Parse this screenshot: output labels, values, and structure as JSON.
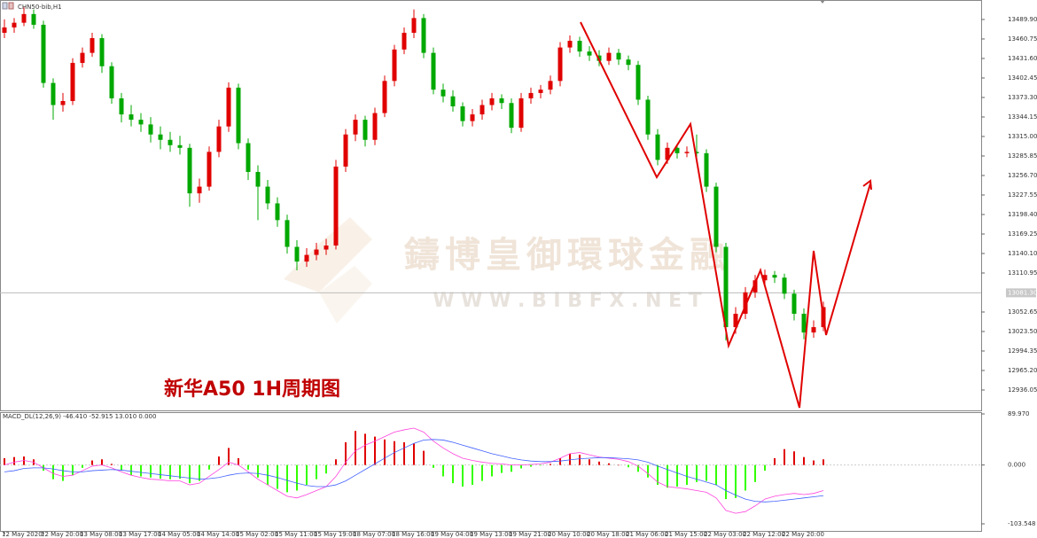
{
  "chart_data": {
    "type": "candlestick",
    "title": "CHN50-bib,H1",
    "annotation": "新华A50 1H周期图",
    "watermark": [
      "鑄博皇御環球金融",
      "W W W . B I B F X . N E T"
    ],
    "up_color": "#e00000",
    "down_color": "#00a800",
    "categories": [
      "12 May 2020",
      null,
      null,
      null,
      "12 May 20:00",
      null,
      null,
      null,
      "13 May 08:00",
      null,
      null,
      null,
      "13 May 17:00",
      null,
      null,
      null,
      "14 May 05:00",
      null,
      null,
      null,
      "14 May 14:00",
      null,
      null,
      null,
      "15 May 02:00",
      null,
      null,
      null,
      "15 May 11:00",
      null,
      null,
      null,
      "15 May 19:00",
      null,
      null,
      null,
      "18 May 07:00",
      null,
      null,
      null,
      "18 May 16:00",
      null,
      null,
      null,
      "19 May 04:00",
      null,
      null,
      null,
      "19 May 13:00",
      null,
      null,
      null,
      "19 May 21:00",
      null,
      null,
      null,
      "20 May 10:00",
      null,
      null,
      null,
      "20 May 18:00",
      null,
      null,
      null,
      "21 May 06:00",
      null,
      null,
      null,
      "21 May 15:00",
      null,
      null,
      null,
      "22 May 03:00",
      null,
      null,
      null,
      "22 May 12:00",
      null,
      null,
      null,
      "22 May 20:00",
      null,
      null,
      null,
      null
    ],
    "open": [
      13470,
      13478,
      13485,
      13498,
      13482,
      13395,
      13362,
      13368,
      13425,
      13440,
      13462,
      13420,
      13372,
      13348,
      13340,
      13333,
      13318,
      13310,
      13302,
      13298,
      13230,
      13240,
      13292,
      13330,
      13388,
      13305,
      13262,
      13240,
      13215,
      13190,
      13150,
      13128,
      13138,
      13146,
      13152,
      13270,
      13318,
      13340,
      13310,
      13350,
      13398,
      13445,
      13470,
      13492,
      13440,
      13385,
      13375,
      13360,
      13338,
      13348,
      13362,
      13372,
      13365,
      13328,
      13372,
      13380,
      13385,
      13398,
      13448,
      13458,
      13442,
      13436,
      13428,
      13440,
      13430,
      13422,
      13370,
      13318,
      13280,
      13298,
      13290,
      13292,
      13290,
      13240,
      13150,
      13030,
      13050,
      13082,
      13100,
      13108,
      13104,
      13080,
      13050,
      13022,
      13030
    ],
    "high": [
      13490,
      13492,
      13508,
      13505,
      13488,
      13402,
      13380,
      13432,
      13448,
      13470,
      13468,
      13426,
      13380,
      13362,
      13350,
      13344,
      13330,
      13322,
      13316,
      13304,
      13252,
      13300,
      13340,
      13396,
      13394,
      13312,
      13272,
      13250,
      13224,
      13198,
      13160,
      13148,
      13156,
      13162,
      13280,
      13326,
      13348,
      13346,
      13358,
      13406,
      13452,
      13478,
      13505,
      13498,
      13448,
      13394,
      13384,
      13366,
      13356,
      13370,
      13380,
      13378,
      13372,
      13380,
      13388,
      13392,
      13406,
      13456,
      13466,
      13464,
      13450,
      13444,
      13448,
      13446,
      13436,
      13428,
      13376,
      13326,
      13306,
      13304,
      13300,
      13318,
      13296,
      13246,
      13156,
      13060,
      13090,
      13108,
      13116,
      13114,
      13110,
      13086,
      13058,
      13040,
      13068
    ],
    "low": [
      13462,
      13470,
      13480,
      13476,
      13388,
      13340,
      13352,
      13362,
      13418,
      13434,
      13410,
      13364,
      13336,
      13330,
      13322,
      13306,
      13296,
      13292,
      13288,
      13210,
      13216,
      13234,
      13284,
      13322,
      13296,
      13250,
      13190,
      13206,
      13180,
      13140,
      13115,
      13120,
      13130,
      13138,
      13146,
      13262,
      13308,
      13300,
      13302,
      13344,
      13390,
      13438,
      13462,
      13432,
      13378,
      13366,
      13352,
      13330,
      13330,
      13340,
      13354,
      13356,
      13320,
      13322,
      13364,
      13372,
      13378,
      13390,
      13440,
      13434,
      13428,
      13420,
      13422,
      13422,
      13414,
      13362,
      13310,
      13272,
      13274,
      13282,
      13284,
      13284,
      13232,
      13142,
      13010,
      13020,
      13042,
      13074,
      13094,
      13096,
      13072,
      13040,
      13012,
      13014,
      13024
    ],
    "close": [
      13478,
      13485,
      13498,
      13482,
      13395,
      13362,
      13368,
      13425,
      13440,
      13462,
      13420,
      13372,
      13348,
      13340,
      13333,
      13318,
      13310,
      13302,
      13298,
      13230,
      13240,
      13292,
      13330,
      13388,
      13305,
      13262,
      13240,
      13215,
      13190,
      13150,
      13128,
      13138,
      13146,
      13152,
      13270,
      13318,
      13340,
      13310,
      13350,
      13398,
      13445,
      13470,
      13492,
      13440,
      13385,
      13375,
      13360,
      13338,
      13348,
      13362,
      13372,
      13365,
      13328,
      13372,
      13380,
      13385,
      13398,
      13448,
      13458,
      13442,
      13436,
      13428,
      13440,
      13430,
      13422,
      13370,
      13318,
      13280,
      13298,
      13290,
      13292,
      13290,
      13240,
      13150,
      13030,
      13050,
      13082,
      13100,
      13108,
      13104,
      13080,
      13050,
      13022,
      13030,
      13060
    ],
    "ylim": [
      12905.6,
      13519
    ],
    "yticks": [
      {
        "value": 13489.9,
        "label": "13489.90"
      },
      {
        "value": 13460.75,
        "label": "13460.75"
      },
      {
        "value": 13431.6,
        "label": "13431.60"
      },
      {
        "value": 13402.45,
        "label": "13402.45"
      },
      {
        "value": 13373.3,
        "label": "13373.30"
      },
      {
        "value": 13344.15,
        "label": "13344.15"
      },
      {
        "value": 13315,
        "label": "13315.00"
      },
      {
        "value": 13285.85,
        "label": "13285.85"
      },
      {
        "value": 13256.7,
        "label": "13256.70"
      },
      {
        "value": 13227.55,
        "label": "13227.55"
      },
      {
        "value": 13198.4,
        "label": "13198.40"
      },
      {
        "value": 13169.25,
        "label": "13169.25"
      },
      {
        "value": 13140.1,
        "label": "13140.10"
      },
      {
        "value": 13110.95,
        "label": "13110.95"
      },
      {
        "value": 13052.65,
        "label": "13052.65"
      },
      {
        "value": 13023.5,
        "label": "13023.50"
      },
      {
        "value": 12994.35,
        "label": "12994.35"
      },
      {
        "value": 12965.2,
        "label": "12965.20"
      },
      {
        "value": 12936.05,
        "label": "12936.05"
      }
    ],
    "current_price": {
      "value": 13081.3,
      "label": "13081.30"
    },
    "indicator": {
      "type": "macd",
      "title": "MACD_DL(12,26,9) -46.410 -52.915 13.010 0.000",
      "ylim": [
        -117.6,
        93.1
      ],
      "yticks": [
        {
          "value": 89.97,
          "label": "89.970"
        },
        {
          "value": 0,
          "label": "0.000"
        },
        {
          "value": -103.548,
          "label": "-103.548"
        }
      ],
      "histogram": {
        "up_color": "#e00000",
        "down_color": "#33ff00",
        "values": [
          12,
          14,
          15,
          10,
          -10,
          -25,
          -28,
          -18,
          -5,
          8,
          10,
          2,
          -10,
          -18,
          -20,
          -22,
          -24,
          -25,
          -24,
          -32,
          -28,
          -8,
          15,
          30,
          12,
          -8,
          -22,
          -35,
          -42,
          -48,
          -45,
          -35,
          -25,
          -15,
          10,
          40,
          60,
          55,
          50,
          45,
          42,
          40,
          38,
          25,
          -5,
          -20,
          -32,
          -38,
          -35,
          -28,
          -20,
          -14,
          -12,
          -6,
          -3,
          -1,
          2,
          12,
          20,
          18,
          10,
          6,
          3,
          0,
          -4,
          -12,
          -22,
          -35,
          -40,
          -38,
          -35,
          -30,
          -28,
          -35,
          -60,
          -58,
          -45,
          -30,
          -10,
          12,
          28,
          24,
          14,
          8,
          10
        ]
      },
      "series": [
        {
          "color": "#ff44dd",
          "values": [
            0,
            5,
            8,
            5,
            -5,
            -15,
            -20,
            -18,
            -10,
            -2,
            0,
            -5,
            -12,
            -18,
            -22,
            -25,
            -26,
            -28,
            -28,
            -35,
            -32,
            -20,
            -8,
            5,
            0,
            -12,
            -25,
            -35,
            -45,
            -55,
            -58,
            -52,
            -45,
            -38,
            -20,
            5,
            25,
            35,
            42,
            50,
            58,
            62,
            65,
            58,
            42,
            30,
            20,
            12,
            8,
            5,
            3,
            2,
            0,
            0,
            1,
            2,
            5,
            12,
            20,
            22,
            18,
            14,
            12,
            10,
            6,
            -2,
            -15,
            -30,
            -38,
            -40,
            -42,
            -45,
            -48,
            -58,
            -80,
            -85,
            -82,
            -72,
            -60,
            -55,
            -52,
            -50,
            -52,
            -50,
            -45
          ]
        },
        {
          "color": "#4060ff",
          "values": [
            -12,
            -10,
            -6,
            -5,
            -5,
            -7,
            -10,
            -12,
            -12,
            -10,
            -9,
            -8,
            -9,
            -11,
            -13,
            -15,
            -17,
            -19,
            -21,
            -23,
            -25,
            -24,
            -22,
            -18,
            -15,
            -14,
            -15,
            -18,
            -22,
            -27,
            -32,
            -36,
            -38,
            -38,
            -35,
            -28,
            -18,
            -8,
            2,
            12,
            22,
            30,
            38,
            44,
            45,
            44,
            40,
            35,
            30,
            25,
            20,
            16,
            12,
            9,
            7,
            6,
            6,
            7,
            9,
            11,
            12,
            13,
            13,
            12,
            11,
            9,
            5,
            -2,
            -8,
            -14,
            -20,
            -25,
            -30,
            -35,
            -45,
            -53,
            -60,
            -64,
            -65,
            -64,
            -62,
            -60,
            -58,
            -56,
            -54
          ]
        }
      ]
    }
  }
}
